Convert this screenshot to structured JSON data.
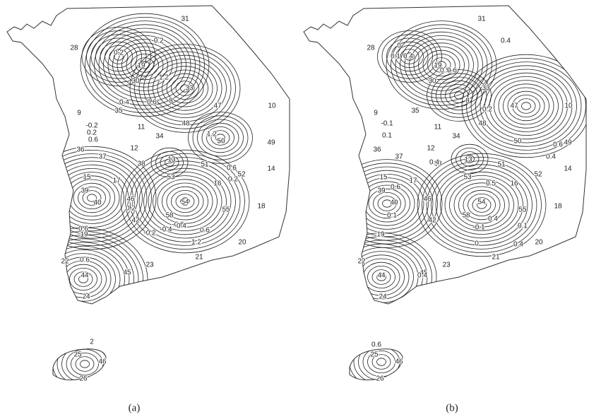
{
  "panels": [
    {
      "caption": "(a)",
      "station_labels": [
        "31",
        "28",
        "19",
        "30",
        "33",
        "8",
        "35",
        "11",
        "34",
        "48",
        "47",
        "10",
        "50",
        "49",
        "9",
        "36",
        "37",
        "12",
        "38",
        "13",
        "51",
        "14",
        "15",
        "39",
        "17",
        "46",
        "40",
        "16",
        "52",
        "53",
        "54",
        "42",
        "18",
        "58",
        "55",
        "20",
        "21",
        "22",
        "44",
        "23",
        "45",
        "24",
        "25",
        "26",
        "19"
      ],
      "contour_labels": [
        "0.2",
        "-0.2",
        "1.2",
        "0.6",
        "0.4",
        "-0.2",
        "0.2",
        "0.6",
        "1.2",
        "0.6",
        "0.2",
        "0.6",
        "0.2",
        "-0.2",
        "-0.4",
        "-0.6",
        "0.4",
        "0.6",
        "1.2",
        "0.6",
        "2",
        "46"
      ]
    },
    {
      "caption": "(b)",
      "station_labels": [
        "31",
        "28",
        "19",
        "30",
        "33",
        "8",
        "35",
        "11",
        "34",
        "48",
        "47",
        "10",
        "50",
        "49",
        "9",
        "36",
        "37",
        "12",
        "38",
        "13",
        "51",
        "14",
        "15",
        "39",
        "17",
        "46",
        "40",
        "16",
        "52",
        "53",
        "54",
        "42",
        "18",
        "58",
        "55",
        "20",
        "21",
        "22",
        "44",
        "23",
        "45",
        "24",
        "25",
        "26",
        "19"
      ],
      "contour_labels": [
        "0",
        "0.1",
        "0.4",
        "0.4",
        "0.5",
        "0.6",
        "0.2",
        "-0.1",
        "0.1",
        "0.4",
        "0.6",
        "0.4",
        "0.6",
        "0.1",
        "0.5",
        "0.4",
        "-0.1",
        "0",
        "0.1",
        "0.4",
        "0.4",
        "0.6",
        "46"
      ]
    }
  ]
}
